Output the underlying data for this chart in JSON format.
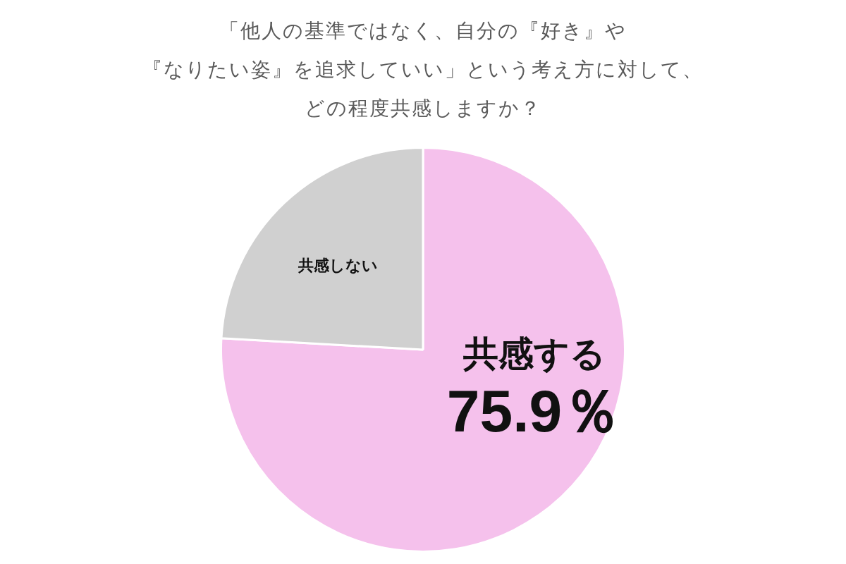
{
  "chart_data": {
    "type": "pie",
    "title": "「他人の基準ではなく、自分の『好き』や『なりたい姿』を追求していい」という考え方に対して、どの程度共感しますか？",
    "categories": [
      "共感する",
      "共感しない"
    ],
    "values": [
      75.9,
      24.1
    ],
    "colors": [
      "#f5c1ec",
      "#d0d0d0"
    ],
    "value_labels": [
      "75.9％",
      null
    ]
  }
}
